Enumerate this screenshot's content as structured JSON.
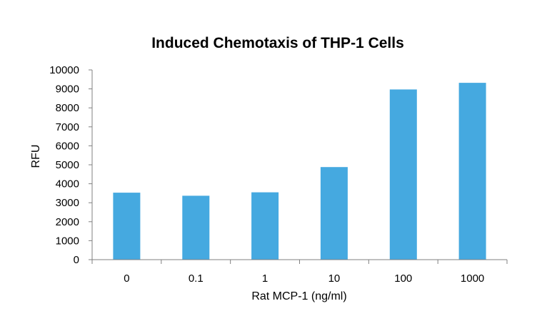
{
  "chart_data": {
    "type": "bar",
    "title": "Induced Chemotaxis of THP-1 Cells",
    "xlabel": "Rat MCP-1 (ng/ml)",
    "ylabel": "RFU",
    "categories": [
      "0",
      "0.1",
      "1",
      "10",
      "100",
      "1000"
    ],
    "values": [
      3530,
      3370,
      3550,
      4880,
      8970,
      9320
    ],
    "ylim": [
      0,
      10000
    ],
    "yticks": [
      0,
      1000,
      2000,
      3000,
      4000,
      5000,
      6000,
      7000,
      8000,
      9000,
      10000
    ],
    "bar_color": "#45a9e0",
    "grid": false,
    "legend": "none"
  }
}
